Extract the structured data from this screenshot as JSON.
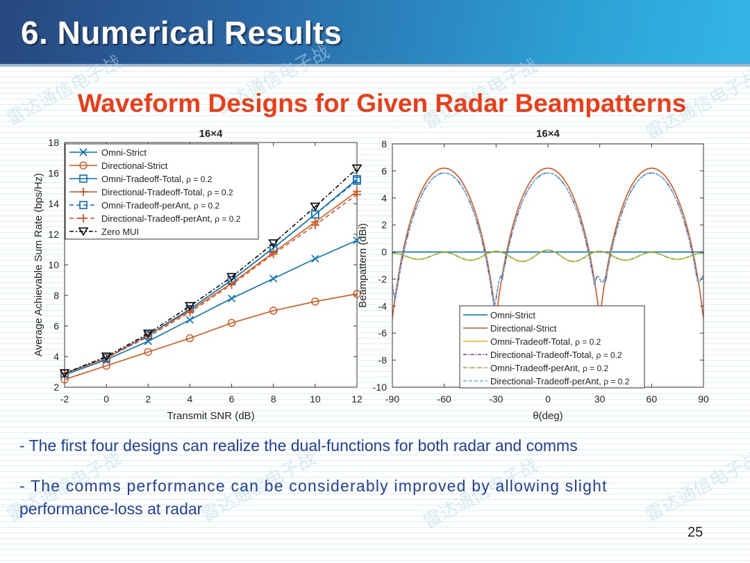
{
  "header": {
    "title": "6. Numerical Results"
  },
  "subtitle": "Waveform Designs for Given Radar Beampatterns",
  "watermark": "雷达通信电子战",
  "bullets": [
    "- The first four designs can realize the dual-functions for both radar and comms",
    "- The comms performance can be considerably improved by allowing slight",
    "performance-loss at radar"
  ],
  "page_number": "25",
  "colors": {
    "blue": "#0072bd",
    "orange": "#d95319",
    "yellow": "#edb120",
    "purple": "#7e2f8e",
    "green": "#77ac30",
    "cyan": "#4dbeee",
    "black": "#000000",
    "title_red": "#ee3d16",
    "bullet_blue": "#1f3fa0"
  },
  "chart_data": [
    {
      "type": "line",
      "title": "16×4",
      "xlabel": "Transmit SNR (dB)",
      "ylabel": "Average Achievable Sum Rate (bps/Hz)",
      "xlim": [
        -2,
        12
      ],
      "ylim": [
        2,
        18
      ],
      "xticks": [
        -2,
        0,
        2,
        4,
        6,
        8,
        10,
        12
      ],
      "yticks": [
        2,
        4,
        6,
        8,
        10,
        12,
        14,
        16,
        18
      ],
      "legend_position": "top-left",
      "x": [
        -2,
        0,
        2,
        4,
        6,
        8,
        10,
        12
      ],
      "series": [
        {
          "name": "Omni-Strict",
          "rho": "",
          "color": "#0072bd",
          "dash": "",
          "marker": "x",
          "values": [
            2.8,
            3.8,
            5.0,
            6.4,
            7.8,
            9.1,
            10.4,
            11.6
          ]
        },
        {
          "name": "Directional-Strict",
          "rho": "",
          "color": "#d95319",
          "dash": "",
          "marker": "o",
          "values": [
            2.5,
            3.4,
            4.3,
            5.2,
            6.2,
            7.0,
            7.6,
            8.1
          ]
        },
        {
          "name": "Omni-Tradeoff-Total, ",
          "rho": "ρ = 0.2",
          "color": "#0072bd",
          "dash": "",
          "marker": "s",
          "values": [
            2.9,
            3.9,
            5.4,
            7.1,
            9.0,
            11.1,
            13.3,
            15.6
          ]
        },
        {
          "name": "Directional-Tradeoff-Total, ",
          "rho": "ρ = 0.2",
          "color": "#d95319",
          "dash": "",
          "marker": "+",
          "values": [
            2.9,
            3.9,
            5.4,
            7.0,
            8.8,
            10.8,
            12.8,
            14.8
          ]
        },
        {
          "name": "Omni-Tradeoff-perAnt, ",
          "rho": "ρ = 0.2",
          "color": "#0072bd",
          "dash": "6 4",
          "marker": "s",
          "values": [
            2.9,
            3.9,
            5.4,
            7.1,
            9.0,
            11.1,
            13.3,
            15.5
          ]
        },
        {
          "name": "Directional-Tradeoff-perAnt, ",
          "rho": "ρ = 0.2",
          "color": "#d95319",
          "dash": "6 4",
          "marker": "+",
          "values": [
            2.9,
            3.9,
            5.3,
            6.9,
            8.7,
            10.7,
            12.6,
            14.6
          ]
        },
        {
          "name": "Zero MUI",
          "rho": "",
          "color": "#000000",
          "dash": "6 3 2 3",
          "marker": "v",
          "values": [
            2.9,
            4.0,
            5.5,
            7.3,
            9.2,
            11.4,
            13.8,
            16.3
          ]
        }
      ]
    },
    {
      "type": "line",
      "title": "16×4",
      "xlabel": "θ(deg)",
      "ylabel": "Beampattern (dBi)",
      "xlim": [
        -90,
        90
      ],
      "ylim": [
        -10,
        8
      ],
      "xticks": [
        -90,
        -60,
        -30,
        0,
        30,
        60,
        90
      ],
      "yticks": [
        -10,
        -8,
        -6,
        -4,
        -2,
        0,
        2,
        4,
        6,
        8
      ],
      "legend_position": "bottom-right",
      "series": [
        {
          "name": "Omni-Strict",
          "rho": "",
          "color": "#0072bd",
          "dash": "",
          "profile": "omni"
        },
        {
          "name": "Directional-Strict",
          "rho": "",
          "color": "#d95319",
          "dash": "",
          "profile": "directional"
        },
        {
          "name": "Omni-Tradeoff-Total, ",
          "rho": "ρ = 0.2",
          "color": "#edb120",
          "dash": "",
          "profile": "omni-ripple"
        },
        {
          "name": "Directional-Tradeoff-Total, ",
          "rho": "ρ = 0.2",
          "color": "#7e2f8e",
          "dash": "5 2 1.5 2",
          "profile": "directional-tradeoff"
        },
        {
          "name": "Omni-Tradeoff-perAnt, ",
          "rho": "ρ = 0.2",
          "color": "#77ac30",
          "dash": "5 2 1.5 2",
          "profile": "omni-ripple"
        },
        {
          "name": "Directional-Tradeoff-perAnt, ",
          "rho": "ρ = 0.2",
          "color": "#4dbeee",
          "dash": "5 3",
          "profile": "directional-tradeoff"
        }
      ]
    }
  ]
}
